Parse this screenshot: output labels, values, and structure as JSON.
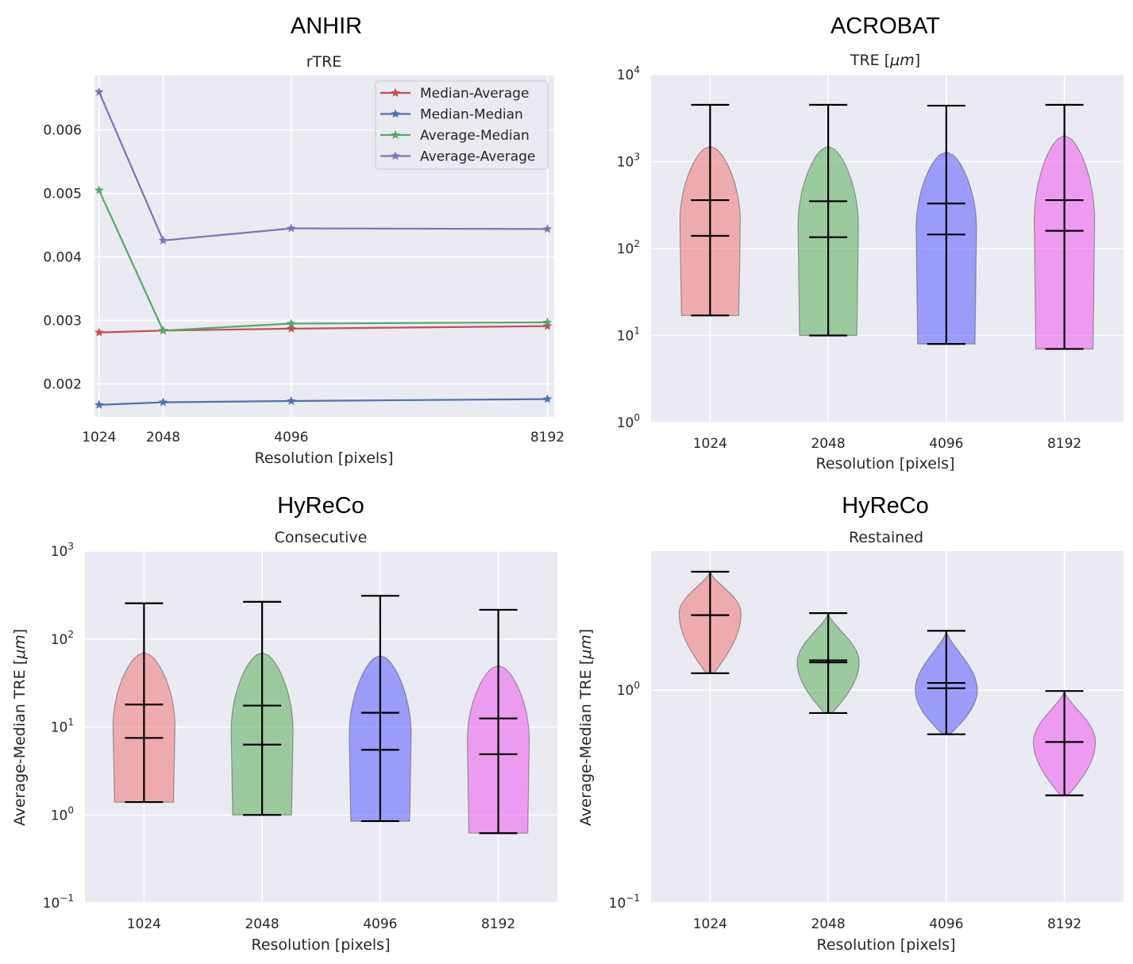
{
  "chart_data": [
    {
      "type": "line",
      "figure_title": "ANHIR",
      "title": "rTRE",
      "xlabel": "Resolution [pixels]",
      "ylabel": "",
      "x": [
        1024,
        2048,
        4096,
        8192
      ],
      "x_tick_labels": [
        "1024",
        "2048",
        "4096",
        "8192"
      ],
      "xlim": [
        950,
        8300
      ],
      "ylim": [
        0.00148,
        0.00686
      ],
      "y_ticks": [
        0.002,
        0.003,
        0.004,
        0.005,
        0.006
      ],
      "y_tick_labels": [
        "0.002",
        "0.003",
        "0.004",
        "0.005",
        "0.006"
      ],
      "grid": true,
      "legend_position": "top-right",
      "series": [
        {
          "name": "Median-Average",
          "color": "#c44e52",
          "values": [
            0.00281,
            0.00284,
            0.00287,
            0.00291
          ]
        },
        {
          "name": "Median-Median",
          "color": "#4c72b0",
          "values": [
            0.00167,
            0.00171,
            0.00173,
            0.00176
          ]
        },
        {
          "name": "Average-Median",
          "color": "#55a868",
          "values": [
            0.00505,
            0.00284,
            0.00295,
            0.00297
          ]
        },
        {
          "name": "Average-Average",
          "color": "#8172b2",
          "values": [
            0.0066,
            0.00426,
            0.00445,
            0.00444
          ]
        }
      ]
    },
    {
      "type": "violin",
      "figure_title": "ACROBAT",
      "title_prefix": "TRE [",
      "title_math": "μm",
      "title_suffix": "]",
      "xlabel": "Resolution [pixels]",
      "ylabel": "",
      "y_scale": "log",
      "categories": [
        "1024",
        "2048",
        "4096",
        "8192"
      ],
      "ylim": [
        1,
        10000
      ],
      "y_ticks": [
        {
          "base": "10",
          "exp": "0"
        },
        {
          "base": "10",
          "exp": "1"
        },
        {
          "base": "10",
          "exp": "2"
        },
        {
          "base": "10",
          "exp": "3"
        },
        {
          "base": "10",
          "exp": "4"
        }
      ],
      "grid": true,
      "violins": [
        {
          "category": "1024",
          "color": "#f08080",
          "min": 17,
          "max": 4500,
          "median": 140,
          "mean": 360,
          "body_top": 1500,
          "body_bottom": 17,
          "peak": 200
        },
        {
          "category": "2048",
          "color": "#66b366",
          "min": 10,
          "max": 4500,
          "median": 135,
          "mean": 350,
          "body_top": 1500,
          "body_bottom": 10,
          "peak": 180
        },
        {
          "category": "4096",
          "color": "#6666ff",
          "min": 8,
          "max": 4400,
          "median": 145,
          "mean": 330,
          "body_top": 1300,
          "body_bottom": 8,
          "peak": 170
        },
        {
          "category": "8192",
          "color": "#ee66ee",
          "min": 7,
          "max": 4500,
          "median": 160,
          "mean": 360,
          "body_top": 2000,
          "body_bottom": 7,
          "peak": 210
        }
      ]
    },
    {
      "type": "violin",
      "figure_title": "HyReCo",
      "title": "Consecutive",
      "xlabel": "",
      "ylabel_prefix": "Average-Median TRE [",
      "ylabel_math": "μm",
      "ylabel_suffix": "]",
      "y_scale": "log",
      "categories": [
        "1024",
        "2048",
        "4096",
        "8192"
      ],
      "ylim": [
        0.1,
        1000
      ],
      "y_ticks": [
        {
          "base": "10",
          "exp": "−1"
        },
        {
          "base": "10",
          "exp": "0"
        },
        {
          "base": "10",
          "exp": "1"
        },
        {
          "base": "10",
          "exp": "2"
        },
        {
          "base": "10",
          "exp": "3"
        }
      ],
      "grid": true,
      "violins": [
        {
          "category": "1024",
          "color": "#f08080",
          "min": 1.4,
          "max": 255,
          "median": 7.5,
          "mean": 18,
          "body_top": 70,
          "body_bottom": 1.4,
          "peak": 10
        },
        {
          "category": "2048",
          "color": "#66b366",
          "min": 1.0,
          "max": 265,
          "median": 6.3,
          "mean": 17.5,
          "body_top": 70,
          "body_bottom": 1.0,
          "peak": 9
        },
        {
          "category": "4096",
          "color": "#6666ff",
          "min": 0.85,
          "max": 310,
          "median": 5.5,
          "mean": 14.5,
          "body_top": 65,
          "body_bottom": 0.85,
          "peak": 8
        },
        {
          "category": "8192",
          "color": "#ee66ee",
          "min": 0.62,
          "max": 215,
          "median": 4.9,
          "mean": 12.5,
          "body_top": 50,
          "body_bottom": 0.62,
          "peak": 7
        }
      ]
    },
    {
      "type": "violin",
      "figure_title": "HyReCo",
      "title": "Restained",
      "xlabel": "",
      "ylabel_prefix": "Average-Median TRE [",
      "ylabel_math": "μm",
      "ylabel_suffix": "]",
      "y_scale": "log",
      "categories": [
        "1024",
        "2048",
        "4096",
        "8192"
      ],
      "ylim": [
        0.1,
        4.5
      ],
      "y_ticks": [
        {
          "base": "10",
          "exp": "−1"
        },
        {
          "base": "10",
          "exp": "0"
        }
      ],
      "grid": true,
      "violins": [
        {
          "category": "1024",
          "color": "#f08080",
          "min": 1.2,
          "max": 3.6,
          "median": 2.25,
          "mean": 2.25,
          "body_top": 3.6,
          "body_bottom": 1.2,
          "peak": 2.3
        },
        {
          "category": "2048",
          "color": "#66b366",
          "min": 0.78,
          "max": 2.3,
          "median": 1.35,
          "mean": 1.38,
          "body_top": 2.3,
          "body_bottom": 0.78,
          "peak": 1.35
        },
        {
          "category": "4096",
          "color": "#6666ff",
          "min": 0.62,
          "max": 1.9,
          "median": 1.02,
          "mean": 1.08,
          "body_top": 1.9,
          "body_bottom": 0.62,
          "peak": 1.0
        },
        {
          "category": "8192",
          "color": "#ee66ee",
          "min": 0.32,
          "max": 0.99,
          "median": 0.57,
          "mean": 0.57,
          "body_top": 0.99,
          "body_bottom": 0.32,
          "peak": 0.57
        }
      ]
    }
  ],
  "shared_xlabel": "Resolution [pixels]"
}
